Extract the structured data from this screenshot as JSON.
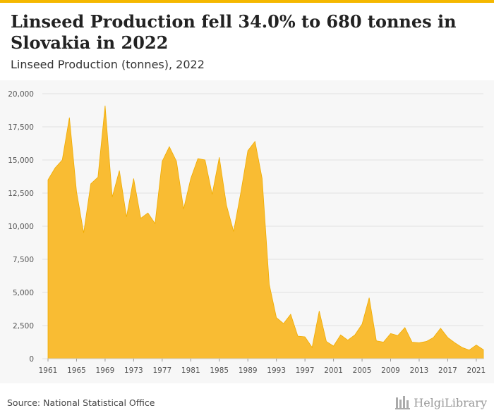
{
  "header": {
    "title": "Linseed Production fell 34.0% to 680 tonnes in Slovakia in 2022",
    "subtitle": "Linseed Production (tonnes), 2022"
  },
  "footer": {
    "source": "Source: National Statistical Office",
    "logo_text": "HelgiLibrary"
  },
  "colors": {
    "area": "#f9bc33",
    "line": "#f0ac00",
    "grid": "#e2e2e2",
    "accent": "#f5b800"
  },
  "chart_data": {
    "type": "area",
    "title": "Linseed Production fell 34.0% to 680 tonnes in Slovakia in 2022",
    "subtitle": "Linseed Production (tonnes), 2022",
    "xlabel": "",
    "ylabel": "",
    "ylim": [
      0,
      20000
    ],
    "yticks": [
      0,
      2500,
      5000,
      7500,
      10000,
      12500,
      15000,
      17500,
      20000
    ],
    "ytick_labels": [
      "0",
      "2,500",
      "5,000",
      "7,500",
      "10,000",
      "12,500",
      "15,000",
      "17,500",
      "20,000"
    ],
    "xtick_labels": [
      "1961",
      "1965",
      "1969",
      "1973",
      "1977",
      "1981",
      "1985",
      "1989",
      "1993",
      "1997",
      "2001",
      "2005",
      "2009",
      "2013",
      "2017",
      "2021"
    ],
    "grid": true,
    "x": [
      1961,
      1962,
      1963,
      1964,
      1965,
      1966,
      1967,
      1968,
      1969,
      1970,
      1971,
      1972,
      1973,
      1974,
      1975,
      1976,
      1977,
      1978,
      1979,
      1980,
      1981,
      1982,
      1983,
      1984,
      1985,
      1986,
      1987,
      1988,
      1989,
      1990,
      1991,
      1992,
      1993,
      1994,
      1995,
      1996,
      1997,
      1998,
      1999,
      2000,
      2001,
      2002,
      2003,
      2004,
      2005,
      2006,
      2007,
      2008,
      2009,
      2010,
      2011,
      2012,
      2013,
      2014,
      2015,
      2016,
      2017,
      2018,
      2019,
      2020,
      2021,
      2022
    ],
    "values": [
      13500,
      14400,
      15000,
      18200,
      12600,
      9500,
      13200,
      13700,
      19100,
      12200,
      14200,
      10700,
      13600,
      10600,
      11000,
      10200,
      14900,
      16000,
      14900,
      11300,
      13600,
      15100,
      15000,
      12400,
      15200,
      11600,
      9600,
      12500,
      15700,
      16400,
      13600,
      5600,
      3100,
      2650,
      3350,
      1700,
      1650,
      850,
      3600,
      1300,
      950,
      1800,
      1400,
      1800,
      2600,
      4600,
      1350,
      1250,
      1900,
      1750,
      2350,
      1250,
      1200,
      1300,
      1600,
      2300,
      1600,
      1200,
      850,
      650,
      1030,
      680
    ]
  }
}
